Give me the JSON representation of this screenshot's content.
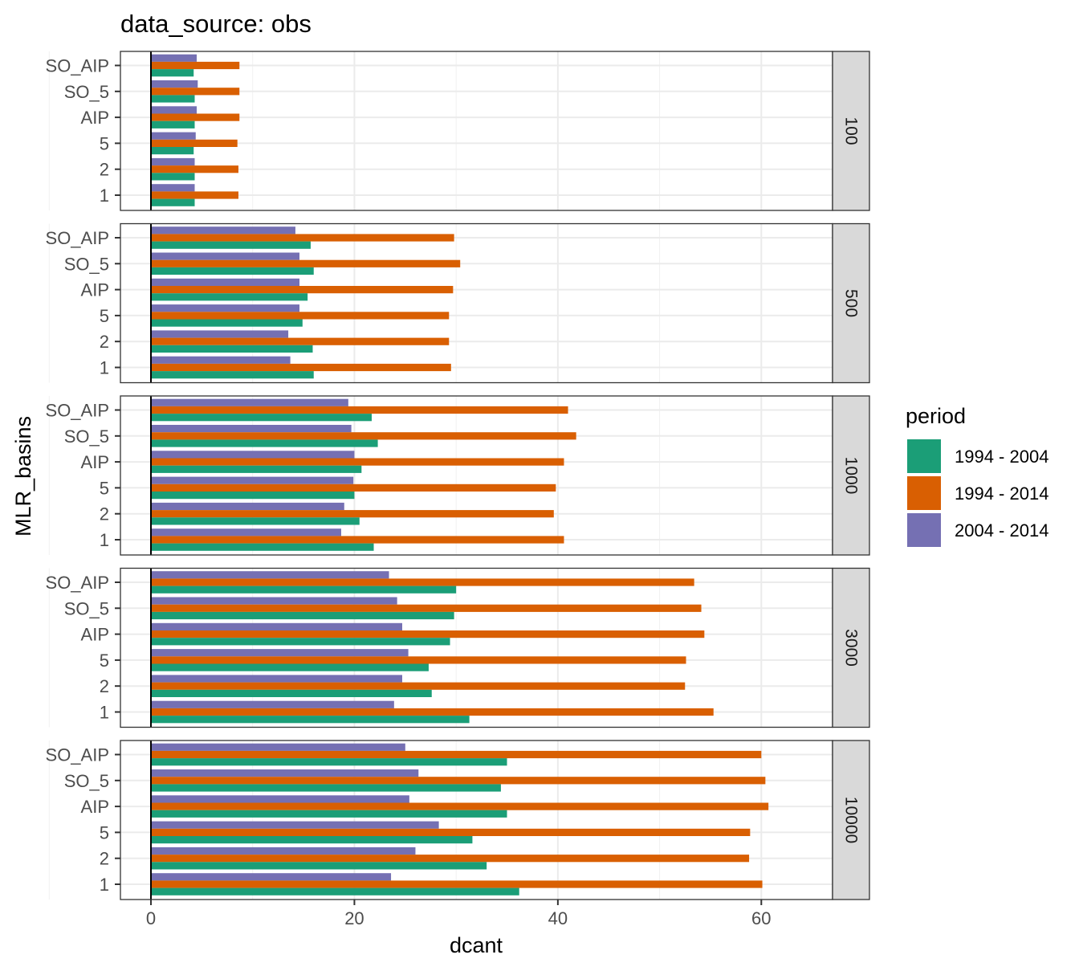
{
  "chart_data": {
    "type": "bar",
    "orientation": "horizontal",
    "title": "data_source: obs",
    "xlabel": "dcant",
    "ylabel": "MLR_basins",
    "xlim": [
      -3,
      67
    ],
    "xticks": [
      0,
      20,
      40,
      60
    ],
    "categories": [
      "SO_AIP",
      "SO_5",
      "AIP",
      "5",
      "2",
      "1"
    ],
    "grid": true,
    "legend": {
      "title": "period",
      "position": "right",
      "entries": [
        {
          "label": "1994 - 2004",
          "color": "#1B9E77"
        },
        {
          "label": "1994 - 2014",
          "color": "#D95F02"
        },
        {
          "label": "2004 - 2014",
          "color": "#7570B3"
        }
      ]
    },
    "panels": [
      {
        "label": "100",
        "series": [
          {
            "name": "1994 - 2004",
            "values": [
              4.2,
              4.3,
              4.3,
              4.2,
              4.3,
              4.3
            ]
          },
          {
            "name": "1994 - 2014",
            "values": [
              8.7,
              8.7,
              8.7,
              8.5,
              8.6,
              8.6
            ]
          },
          {
            "name": "2004 - 2014",
            "values": [
              4.5,
              4.6,
              4.5,
              4.4,
              4.3,
              4.3
            ]
          }
        ]
      },
      {
        "label": "500",
        "series": [
          {
            "name": "1994 - 2004",
            "values": [
              15.7,
              16.0,
              15.4,
              14.9,
              15.9,
              16.0
            ]
          },
          {
            "name": "1994 - 2014",
            "values": [
              29.8,
              30.4,
              29.7,
              29.3,
              29.3,
              29.5
            ]
          },
          {
            "name": "2004 - 2014",
            "values": [
              14.2,
              14.6,
              14.6,
              14.6,
              13.5,
              13.7
            ]
          }
        ]
      },
      {
        "label": "1000",
        "series": [
          {
            "name": "1994 - 2004",
            "values": [
              21.7,
              22.3,
              20.7,
              20.0,
              20.5,
              21.9
            ]
          },
          {
            "name": "1994 - 2014",
            "values": [
              41.0,
              41.8,
              40.6,
              39.8,
              39.6,
              40.6
            ]
          },
          {
            "name": "2004 - 2014",
            "values": [
              19.4,
              19.7,
              20.0,
              19.9,
              19.0,
              18.7
            ]
          }
        ]
      },
      {
        "label": "3000",
        "series": [
          {
            "name": "1994 - 2004",
            "values": [
              30.0,
              29.8,
              29.4,
              27.3,
              27.6,
              31.3
            ]
          },
          {
            "name": "1994 - 2014",
            "values": [
              53.4,
              54.1,
              54.4,
              52.6,
              52.5,
              55.3
            ]
          },
          {
            "name": "2004 - 2014",
            "values": [
              23.4,
              24.2,
              24.7,
              25.3,
              24.7,
              23.9
            ]
          }
        ]
      },
      {
        "label": "10000",
        "series": [
          {
            "name": "1994 - 2004",
            "values": [
              35.0,
              34.4,
              35.0,
              31.6,
              33.0,
              36.2
            ]
          },
          {
            "name": "1994 - 2014",
            "values": [
              60.0,
              60.4,
              60.7,
              58.9,
              58.8,
              60.1
            ]
          },
          {
            "name": "2004 - 2014",
            "values": [
              25.0,
              26.3,
              25.4,
              28.3,
              26.0,
              23.6
            ]
          }
        ]
      }
    ]
  }
}
